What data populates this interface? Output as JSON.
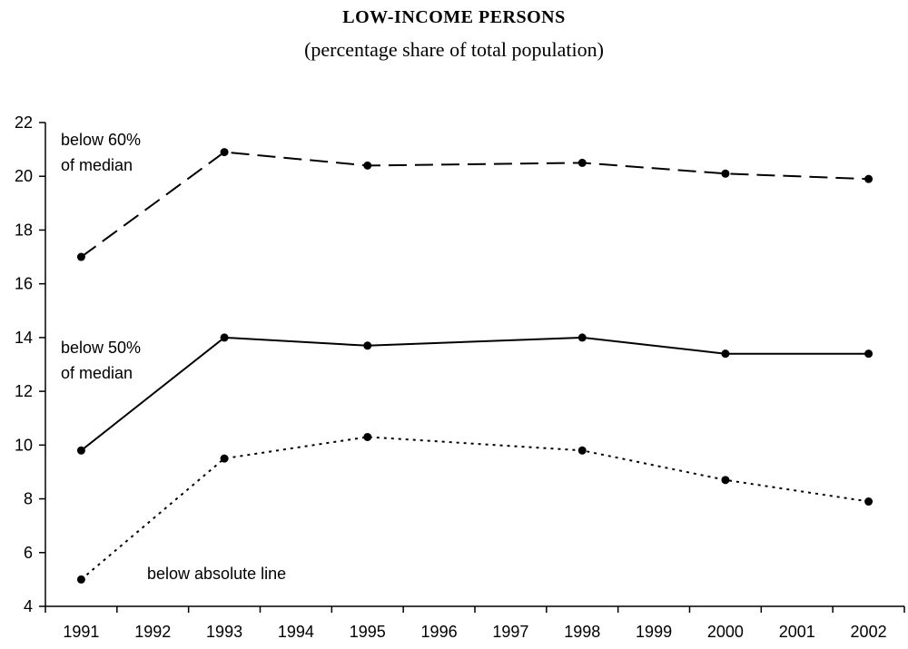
{
  "chart_data": {
    "type": "line",
    "title": "LOW-INCOME PERSONS",
    "subtitle": "(percentage share of total population)",
    "xlabel": "",
    "ylabel": "",
    "categories": [
      "1991",
      "1992",
      "1993",
      "1994",
      "1995",
      "1996",
      "1997",
      "1998",
      "1999",
      "2000",
      "2001",
      "2002"
    ],
    "ylim": [
      4,
      22
    ],
    "yticks": [
      4,
      6,
      8,
      10,
      12,
      14,
      16,
      18,
      20,
      22
    ],
    "grid": false,
    "legend": "inline labels",
    "series": [
      {
        "name": "below 60% of median",
        "label_lines": [
          "below 60%",
          "of median"
        ],
        "style": "dashed",
        "color": "#000000",
        "x": [
          "1991",
          "1993",
          "1995",
          "1998",
          "2000",
          "2002"
        ],
        "values": [
          17.0,
          20.9,
          20.4,
          20.5,
          20.1,
          19.9
        ]
      },
      {
        "name": "below 50% of median",
        "label_lines": [
          "below 50%",
          "of median"
        ],
        "style": "solid",
        "color": "#000000",
        "x": [
          "1991",
          "1993",
          "1995",
          "1998",
          "2000",
          "2002"
        ],
        "values": [
          9.8,
          14.0,
          13.7,
          14.0,
          13.4,
          13.4
        ]
      },
      {
        "name": "below absolute line",
        "label_lines": [
          "below absolute line"
        ],
        "style": "dotted",
        "color": "#000000",
        "x": [
          "1991",
          "1993",
          "1995",
          "1998",
          "2000",
          "2002"
        ],
        "values": [
          5.0,
          9.5,
          10.3,
          9.8,
          8.7,
          7.9
        ]
      }
    ]
  }
}
